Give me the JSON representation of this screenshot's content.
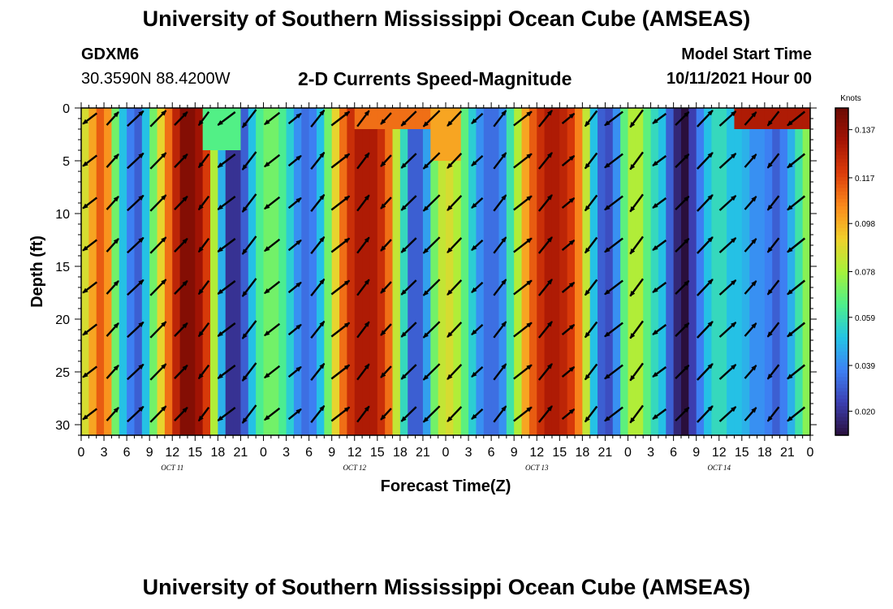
{
  "header": {
    "title": "University of Southern Mississippi Ocean Cube (AMSEAS)",
    "station": "GDXM6",
    "latlon": "30.3590N  88.4200W",
    "subtitle": "2-D Currents Speed-Magnitude",
    "model_start_label": "Model Start Time",
    "model_start_value": "10/11/2021 Hour 00"
  },
  "footer": {
    "title": "University of Southern Mississippi Ocean Cube (AMSEAS)"
  },
  "chart_data": {
    "type": "heatmap",
    "title": "2-D Currents Speed-Magnitude",
    "xlabel": "Forecast Time(Z)",
    "ylabel": "Depth (ft)",
    "x_range_hours": [
      0,
      96
    ],
    "x_ticks": [
      "0",
      "3",
      "6",
      "9",
      "12",
      "15",
      "18",
      "21",
      "0",
      "3",
      "6",
      "9",
      "12",
      "15",
      "18",
      "21",
      "0",
      "3",
      "6",
      "9",
      "12",
      "15",
      "18",
      "21",
      "0",
      "3",
      "6",
      "9",
      "12",
      "15",
      "18",
      "21",
      "0"
    ],
    "day_labels": [
      "OCT 11",
      "OCT 12",
      "OCT 13",
      "OCT 14"
    ],
    "y_range_ft": [
      0,
      31
    ],
    "y_ticks": [
      "0",
      "5",
      "10",
      "15",
      "20",
      "25",
      "30"
    ],
    "colorbar": {
      "unit": "Knots",
      "min": 0.01,
      "max": 0.146,
      "tick_labels": [
        "0.137",
        "0.117",
        "0.098",
        "0.078",
        "0.059",
        "0.039",
        "0.020"
      ],
      "colors": [
        "#2a0f3c",
        "#3c3fb2",
        "#3d82f5",
        "#24c5e4",
        "#4ef08a",
        "#a6f23a",
        "#f0d02c",
        "#fb8a1c",
        "#dc3d0a",
        "#a41404",
        "#6a0a04"
      ]
    },
    "speed_timeseries_hours": [
      0,
      1.5,
      3,
      4.5,
      6,
      7.5,
      9,
      10.5,
      12,
      13.5,
      15,
      16.5,
      18,
      19.5,
      21,
      22.5,
      24,
      25.5,
      27,
      28.5,
      30,
      31.5,
      33,
      34.5,
      36,
      37.5,
      39,
      40.5,
      42,
      43.5,
      45,
      46.5,
      48,
      49.5,
      51,
      52.5,
      54,
      55.5,
      57,
      58.5,
      60,
      61.5,
      63,
      64.5,
      66,
      67.5,
      69,
      70.5,
      72,
      73.5,
      75,
      76.5,
      78,
      79.5,
      81,
      82.5,
      84,
      85.5,
      87,
      88.5,
      90,
      91.5,
      93,
      94.5,
      96
    ],
    "speed_timeseries_knots": [
      0.08,
      0.1,
      0.12,
      0.07,
      0.04,
      0.03,
      0.06,
      0.09,
      0.12,
      0.14,
      0.14,
      0.12,
      0.06,
      0.02,
      0.02,
      0.05,
      0.07,
      0.07,
      0.06,
      0.04,
      0.03,
      0.05,
      0.08,
      0.11,
      0.13,
      0.13,
      0.13,
      0.11,
      0.07,
      0.03,
      0.03,
      0.07,
      0.09,
      0.08,
      0.06,
      0.04,
      0.03,
      0.04,
      0.07,
      0.1,
      0.12,
      0.13,
      0.13,
      0.12,
      0.1,
      0.05,
      0.02,
      0.04,
      0.08,
      0.08,
      0.06,
      0.05,
      0.02,
      0.01,
      0.03,
      0.05,
      0.06,
      0.05,
      0.05,
      0.04,
      0.04,
      0.03,
      0.04,
      0.06,
      0.08
    ],
    "surface_speed_overrides": [
      {
        "hours": [
          16,
          21
        ],
        "depth_ft": [
          0,
          4
        ],
        "knots": 0.065
      },
      {
        "hours": [
          36,
          46
        ],
        "depth_ft": [
          0,
          2
        ],
        "knots": 0.11
      },
      {
        "hours": [
          46,
          50
        ],
        "depth_ft": [
          0,
          5
        ],
        "knots": 0.1
      },
      {
        "hours": [
          86,
          96
        ],
        "depth_ft": [
          0,
          2
        ],
        "knots": 0.13
      }
    ],
    "arrow_rows_ft": [
      1,
      5,
      9,
      13,
      17,
      21,
      25,
      29
    ],
    "arrows_note": "current direction vectors, one per 3-hour column per row"
  }
}
